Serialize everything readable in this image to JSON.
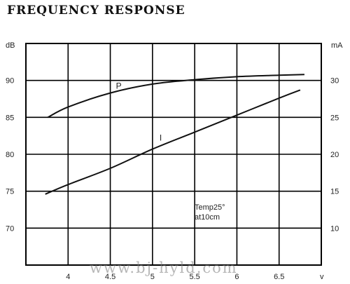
{
  "chart_data": {
    "type": "line",
    "title": "FREQUENCY RESPONSE",
    "left_axis_unit": "dB",
    "right_axis_unit": "mA",
    "x_axis_unit": "v",
    "x_ticks": [
      4,
      4.5,
      5,
      5.5,
      6,
      6.5
    ],
    "x_tick_labels": [
      "4",
      "4.5",
      "5",
      "5.5",
      "6",
      "6.5"
    ],
    "xlim": [
      3.5,
      7.0
    ],
    "y_left_ticks": [
      70,
      75,
      80,
      85,
      90
    ],
    "y_left_tick_labels": [
      "70",
      "75",
      "80",
      "85",
      "90"
    ],
    "y_left_lim": [
      65,
      95
    ],
    "y_right_ticks": [
      10,
      15,
      20,
      25,
      30
    ],
    "y_right_tick_labels": [
      "10",
      "15",
      "20",
      "25",
      "30"
    ],
    "y_right_lim": [
      5,
      35
    ],
    "grid": true,
    "series": [
      {
        "name": "P",
        "axis": "left",
        "x": [
          3.76,
          4.0,
          4.5,
          5.0,
          5.5,
          6.0,
          6.5,
          6.8
        ],
        "y": [
          85.0,
          86.4,
          88.3,
          89.5,
          90.1,
          90.5,
          90.7,
          90.8
        ]
      },
      {
        "name": "I",
        "axis": "right",
        "x": [
          3.73,
          4.0,
          4.5,
          5.0,
          5.5,
          6.0,
          6.5,
          6.75
        ],
        "y": [
          14.6,
          15.9,
          18.1,
          20.7,
          23.0,
          25.3,
          27.6,
          28.7
        ]
      }
    ],
    "annotation": [
      "Temp25°",
      "at10cm"
    ]
  },
  "watermark": "www.bj-hyld.com"
}
